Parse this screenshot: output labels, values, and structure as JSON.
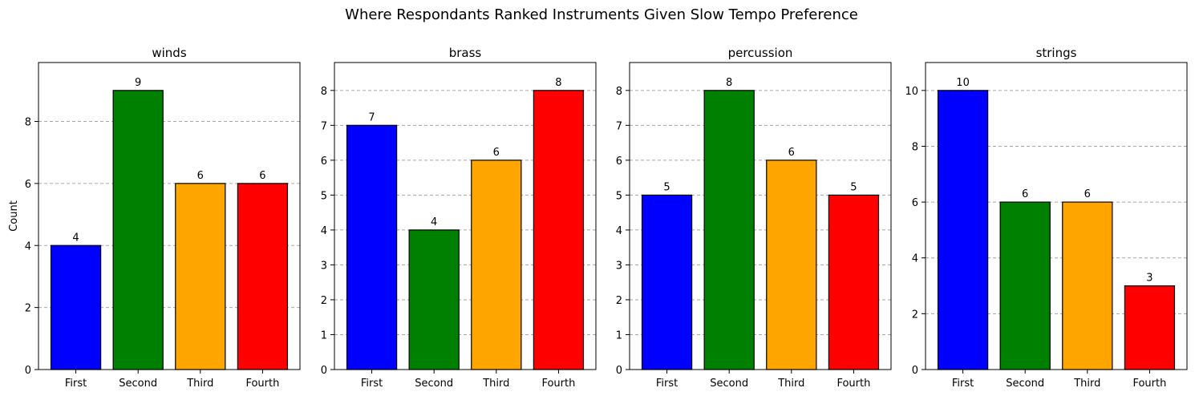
{
  "figure_title": "Where Respondants Ranked Instruments Given Slow Tempo Preference",
  "colors": [
    "#0000ff",
    "#008000",
    "#ffa500",
    "#ff0000"
  ],
  "chart_data": [
    {
      "type": "bar",
      "title": "winds",
      "categories": [
        "First",
        "Second",
        "Third",
        "Fourth"
      ],
      "values": [
        4,
        9,
        6,
        6
      ],
      "ylabel": "Count",
      "ylim": [
        0,
        9.9
      ],
      "yticks": [
        0,
        2,
        4,
        6,
        8
      ],
      "grid": "y-dashed"
    },
    {
      "type": "bar",
      "title": "brass",
      "categories": [
        "First",
        "Second",
        "Third",
        "Fourth"
      ],
      "values": [
        7,
        4,
        6,
        8
      ],
      "ylabel": "",
      "ylim": [
        0,
        8.8
      ],
      "yticks": [
        0,
        1,
        2,
        3,
        4,
        5,
        6,
        7,
        8
      ],
      "grid": "y-dashed"
    },
    {
      "type": "bar",
      "title": "percussion",
      "categories": [
        "First",
        "Second",
        "Third",
        "Fourth"
      ],
      "values": [
        5,
        8,
        6,
        5
      ],
      "ylabel": "",
      "ylim": [
        0,
        8.8
      ],
      "yticks": [
        0,
        1,
        2,
        3,
        4,
        5,
        6,
        7,
        8
      ],
      "grid": "y-dashed"
    },
    {
      "type": "bar",
      "title": "strings",
      "categories": [
        "First",
        "Second",
        "Third",
        "Fourth"
      ],
      "values": [
        10,
        6,
        6,
        3
      ],
      "ylabel": "",
      "ylim": [
        0,
        11
      ],
      "yticks": [
        0,
        2,
        4,
        6,
        8,
        10
      ],
      "grid": "y-dashed"
    }
  ]
}
